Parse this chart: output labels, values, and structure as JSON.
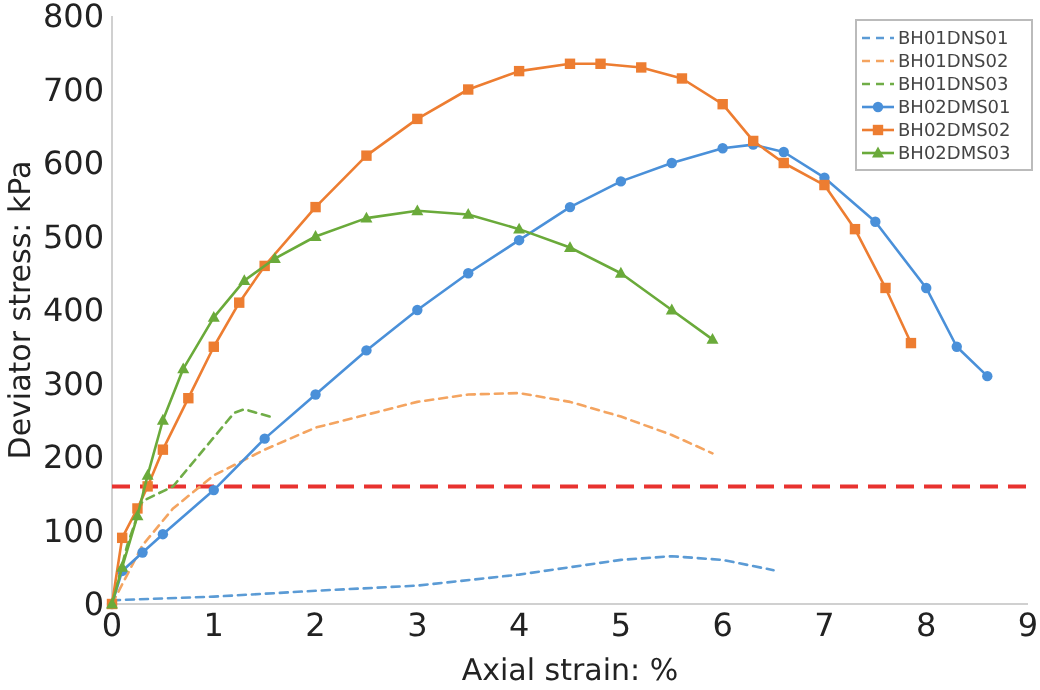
{
  "chart_data": {
    "type": "line",
    "xlabel": "Axial strain: %",
    "ylabel": "Deviator stress: kPa",
    "xlim": [
      0,
      9
    ],
    "xticks": [
      0,
      1,
      2,
      3,
      4,
      5,
      6,
      7,
      8,
      9
    ],
    "ylim": [
      0,
      800
    ],
    "yticks": [
      0,
      100,
      200,
      300,
      400,
      500,
      600,
      700,
      800
    ],
    "grid": false,
    "legend": "top right",
    "ref_lines": [
      {
        "axis": "y",
        "value": 160,
        "color": "#e8322f",
        "line_style": "dashed"
      }
    ],
    "series": [
      {
        "name": "BH01DNS01",
        "color": "#5b9bd5",
        "line_style": "dashed",
        "marker": "none",
        "x": [
          0,
          1,
          2,
          3,
          4,
          5,
          5.5,
          6,
          6.5
        ],
        "values": [
          5,
          10,
          18,
          25,
          40,
          60,
          65,
          60,
          46
        ]
      },
      {
        "name": "BH01DNS02",
        "color": "#f4a460",
        "line_style": "dashed",
        "marker": "none",
        "x": [
          0,
          0.3,
          0.6,
          1,
          1.5,
          2,
          3,
          3.5,
          4,
          4.5,
          5,
          5.5,
          5.9
        ],
        "values": [
          0,
          80,
          130,
          175,
          210,
          240,
          275,
          285,
          287,
          275,
          255,
          230,
          205
        ]
      },
      {
        "name": "BH01DNS03",
        "color": "#70ad47",
        "line_style": "dashed",
        "marker": "none",
        "x": [
          0,
          0.15,
          0.3,
          0.6,
          0.9,
          1.2,
          1.3,
          1.55
        ],
        "values": [
          0,
          80,
          140,
          160,
          210,
          260,
          265,
          255
        ]
      },
      {
        "name": "BH02DMS01",
        "color": "#4a90d9",
        "line_style": "solid",
        "marker": "circle",
        "x": [
          0,
          0.1,
          0.3,
          0.5,
          1,
          1.5,
          2,
          2.5,
          3,
          3.5,
          4,
          4.5,
          5,
          5.5,
          6,
          6.3,
          6.6,
          7,
          7.5,
          8,
          8.3,
          8.6
        ],
        "values": [
          0,
          45,
          70,
          95,
          155,
          225,
          285,
          345,
          400,
          450,
          495,
          540,
          575,
          600,
          620,
          625,
          615,
          580,
          520,
          430,
          350,
          310
        ]
      },
      {
        "name": "BH02DMS02",
        "color": "#ed7d31",
        "line_style": "solid",
        "marker": "square",
        "x": [
          0,
          0.1,
          0.25,
          0.35,
          0.5,
          0.75,
          1,
          1.25,
          1.5,
          2,
          2.5,
          3,
          3.5,
          4,
          4.5,
          4.8,
          5.2,
          5.6,
          6,
          6.3,
          6.6,
          7,
          7.3,
          7.6,
          7.85
        ],
        "values": [
          0,
          90,
          130,
          160,
          210,
          280,
          350,
          410,
          460,
          540,
          610,
          660,
          700,
          725,
          735,
          735,
          730,
          715,
          680,
          630,
          600,
          570,
          510,
          430,
          355
        ]
      },
      {
        "name": "BH02DMS03",
        "color": "#6aaa3a",
        "line_style": "solid",
        "marker": "triangle",
        "x": [
          0,
          0.1,
          0.25,
          0.35,
          0.5,
          0.7,
          1,
          1.3,
          1.6,
          2,
          2.5,
          3,
          3.5,
          4,
          4.5,
          5,
          5.5,
          5.9
        ],
        "values": [
          0,
          50,
          120,
          175,
          250,
          320,
          390,
          440,
          470,
          500,
          525,
          535,
          530,
          510,
          485,
          450,
          400,
          360
        ]
      }
    ]
  }
}
